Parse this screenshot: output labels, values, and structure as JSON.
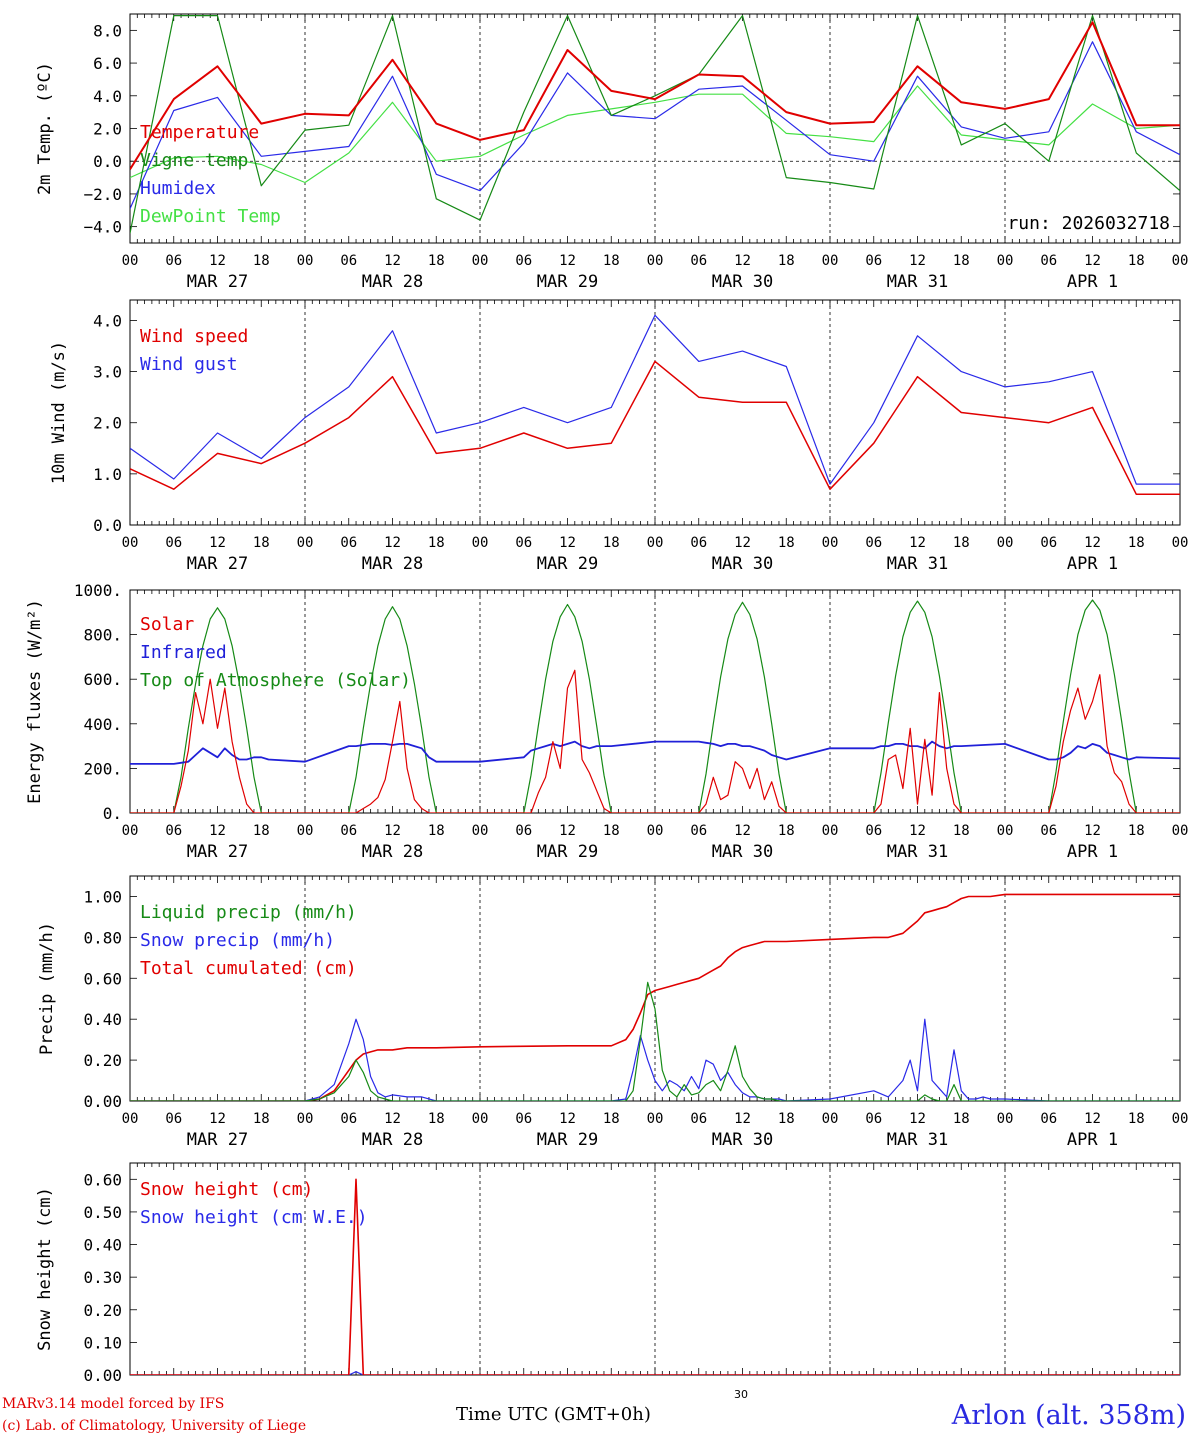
{
  "footer": {
    "model": "MARv3.14 model forced by IFS",
    "copyright": "(c) Lab. of Climatology, University of Liege",
    "time_label": "Time UTC (GMT+0h)",
    "extra_label": "30",
    "station": "Arlon (alt. 358m)"
  },
  "x_axis": {
    "hour_labels": [
      "00",
      "06",
      "12",
      "18",
      "00",
      "06",
      "12",
      "18",
      "00",
      "06",
      "12",
      "18",
      "00",
      "06",
      "12",
      "18",
      "00",
      "06",
      "12",
      "18",
      "00",
      "06",
      "12",
      "18",
      "00"
    ],
    "day_labels": [
      "MAR 27",
      "MAR 28",
      "MAR 29",
      "MAR 30",
      "MAR 31",
      "APR  1"
    ]
  },
  "chart_data": [
    {
      "type": "line",
      "title": "",
      "ylabel": "2m Temp. (ºC)",
      "ylim": [
        -5.0,
        9.0
      ],
      "yticks": [
        "8.0",
        "6.0",
        "4.0",
        "2.0",
        "0.0",
        "−2.0",
        "−4.0"
      ],
      "ytick_values": [
        8,
        6,
        4,
        2,
        0,
        -2,
        -4
      ],
      "zero_line": true,
      "annotation": "run: 2026032718",
      "x_hours": [
        0,
        6,
        12,
        18,
        24,
        30,
        36,
        42,
        48,
        54,
        60,
        66,
        72,
        78,
        84,
        90,
        96,
        102,
        108,
        114,
        120,
        126,
        132,
        138,
        144
      ],
      "series": [
        {
          "name": "Temperature",
          "color": "#e00000",
          "width": 2,
          "values": [
            -0.5,
            3.8,
            5.8,
            2.3,
            2.9,
            2.8,
            6.2,
            2.3,
            1.3,
            1.9,
            6.8,
            4.3,
            3.8,
            5.3,
            5.2,
            3.0,
            2.3,
            2.4,
            5.8,
            3.6,
            3.2,
            3.8,
            8.5,
            2.2,
            2.2
          ]
        },
        {
          "name": "Vigne temp",
          "color": "#168a16",
          "width": 1.2,
          "values": [
            -4.4,
            8.9,
            8.9,
            -1.5,
            1.9,
            2.2,
            8.9,
            -2.3,
            -3.6,
            3.0,
            8.9,
            2.8,
            4.0,
            5.3,
            8.9,
            -1.0,
            -1.3,
            -1.7,
            8.9,
            1.0,
            2.3,
            0.0,
            8.9,
            0.5,
            -1.8
          ]
        },
        {
          "name": "Humidex",
          "color": "#2a2ae8",
          "width": 1.2,
          "values": [
            -2.9,
            3.1,
            3.9,
            0.3,
            0.6,
            0.9,
            5.2,
            -0.8,
            -1.8,
            1.1,
            5.4,
            2.8,
            2.6,
            4.4,
            4.6,
            2.5,
            0.4,
            0.0,
            5.2,
            2.1,
            1.4,
            1.8,
            7.3,
            1.8,
            0.4
          ]
        },
        {
          "name": "DewPoint Temp",
          "color": "#44e044",
          "width": 1.2,
          "values": [
            -1.0,
            0.2,
            0.3,
            -0.2,
            -1.3,
            0.5,
            3.6,
            0.0,
            0.3,
            1.6,
            2.8,
            3.2,
            3.6,
            4.1,
            4.1,
            1.7,
            1.5,
            1.2,
            4.6,
            1.6,
            1.3,
            1.0,
            3.5,
            2.0,
            2.2
          ]
        }
      ]
    },
    {
      "type": "line",
      "title": "",
      "ylabel": "10m Wind (m/s)",
      "ylim": [
        0.0,
        4.4
      ],
      "yticks": [
        "4.0",
        "3.0",
        "2.0",
        "1.0",
        "0.0"
      ],
      "ytick_values": [
        4,
        3,
        2,
        1,
        0
      ],
      "zero_line": false,
      "x_hours": [
        0,
        6,
        12,
        18,
        24,
        30,
        36,
        42,
        48,
        54,
        60,
        66,
        72,
        78,
        84,
        90,
        96,
        102,
        108,
        114,
        120,
        126,
        132,
        138,
        144
      ],
      "series": [
        {
          "name": "Wind speed",
          "color": "#e00000",
          "width": 1.5,
          "values": [
            1.1,
            0.7,
            1.4,
            1.2,
            1.6,
            2.1,
            2.9,
            1.4,
            1.5,
            1.8,
            1.5,
            1.6,
            3.2,
            2.5,
            2.4,
            2.4,
            0.7,
            1.6,
            2.9,
            2.2,
            2.1,
            2.0,
            2.3,
            0.6,
            0.6
          ]
        },
        {
          "name": "Wind gust",
          "color": "#2a2ae8",
          "width": 1.2,
          "values": [
            1.5,
            0.9,
            1.8,
            1.3,
            2.1,
            2.7,
            3.8,
            1.8,
            2.0,
            2.3,
            2.0,
            2.3,
            4.1,
            3.2,
            3.4,
            3.1,
            0.8,
            2.0,
            3.7,
            3.0,
            2.7,
            2.8,
            3.0,
            0.8,
            0.8
          ]
        }
      ]
    },
    {
      "type": "line",
      "title": "",
      "ylabel": "Energy fluxes (W/m²)",
      "ylim": [
        0,
        1000
      ],
      "yticks": [
        "1000.",
        "800.",
        "600.",
        "400.",
        "200.",
        "0."
      ],
      "ytick_values": [
        1000,
        800,
        600,
        400,
        200,
        0
      ],
      "zero_line": false,
      "x_hours": [
        0,
        6,
        7,
        8,
        9,
        10,
        11,
        12,
        13,
        14,
        15,
        16,
        17,
        18,
        19,
        24,
        30,
        31,
        32,
        33,
        34,
        35,
        36,
        37,
        38,
        39,
        40,
        41,
        42,
        48,
        54,
        55,
        56,
        57,
        58,
        59,
        60,
        61,
        62,
        63,
        64,
        65,
        66,
        72,
        78,
        79,
        80,
        81,
        82,
        83,
        84,
        85,
        86,
        87,
        88,
        89,
        90,
        96,
        102,
        103,
        104,
        105,
        106,
        107,
        108,
        109,
        110,
        111,
        112,
        113,
        114,
        120,
        126,
        127,
        128,
        129,
        130,
        131,
        132,
        133,
        134,
        135,
        136,
        137,
        138,
        144
      ],
      "series": [
        {
          "name": "Solar",
          "color": "#e00000",
          "width": 1.2,
          "values": [
            0,
            0,
            120,
            280,
            540,
            400,
            600,
            380,
            560,
            320,
            160,
            40,
            0,
            0,
            0,
            0,
            0,
            0,
            20,
            40,
            70,
            150,
            320,
            500,
            200,
            60,
            20,
            0,
            0,
            0,
            0,
            0,
            90,
            160,
            320,
            200,
            560,
            640,
            240,
            180,
            100,
            20,
            0,
            0,
            0,
            40,
            160,
            60,
            80,
            230,
            200,
            110,
            200,
            60,
            140,
            30,
            0,
            0,
            0,
            40,
            240,
            260,
            110,
            380,
            40,
            330,
            80,
            540,
            200,
            40,
            0,
            0,
            0,
            120,
            320,
            460,
            560,
            420,
            500,
            620,
            300,
            180,
            140,
            40,
            0,
            0
          ]
        },
        {
          "name": "Infrared",
          "color": "#2020d8",
          "width": 1.8,
          "values": [
            220,
            220,
            225,
            230,
            260,
            290,
            270,
            250,
            290,
            260,
            240,
            240,
            250,
            250,
            240,
            230,
            300,
            300,
            305,
            310,
            310,
            310,
            305,
            310,
            310,
            300,
            290,
            250,
            230,
            230,
            250,
            280,
            290,
            300,
            310,
            300,
            310,
            320,
            300,
            290,
            300,
            300,
            300,
            320,
            320,
            315,
            310,
            300,
            310,
            310,
            300,
            300,
            290,
            280,
            260,
            250,
            240,
            290,
            290,
            300,
            300,
            310,
            310,
            300,
            300,
            290,
            320,
            300,
            290,
            300,
            300,
            310,
            240,
            240,
            250,
            270,
            300,
            290,
            310,
            300,
            270,
            260,
            250,
            240,
            250,
            245
          ]
        },
        {
          "name": "Top of Atmosphere (Solar)",
          "color": "#168a16",
          "width": 1.2,
          "values": [
            0,
            0,
            160,
            380,
            580,
            750,
            870,
            920,
            870,
            750,
            580,
            380,
            160,
            0,
            0,
            0,
            0,
            160,
            380,
            580,
            750,
            870,
            925,
            870,
            750,
            580,
            380,
            160,
            0,
            0,
            0,
            170,
            390,
            600,
            770,
            880,
            935,
            880,
            770,
            600,
            390,
            170,
            0,
            0,
            0,
            175,
            400,
            610,
            780,
            890,
            945,
            890,
            780,
            610,
            400,
            175,
            0,
            0,
            0,
            180,
            405,
            615,
            790,
            900,
            950,
            900,
            790,
            615,
            405,
            180,
            0,
            0,
            0,
            185,
            410,
            620,
            800,
            910,
            955,
            910,
            800,
            620,
            410,
            185,
            0,
            0
          ]
        }
      ]
    },
    {
      "type": "line",
      "title": "",
      "ylabel": "Precip (mm/h)",
      "ylim": [
        0.0,
        1.1
      ],
      "yticks": [
        "1.00",
        "0.80",
        "0.60",
        "0.40",
        "0.20",
        "0.00"
      ],
      "ytick_values": [
        1.0,
        0.8,
        0.6,
        0.4,
        0.2,
        0.0
      ],
      "zero_line": false,
      "x_hours": [
        0,
        24,
        26,
        28,
        30,
        31,
        32,
        33,
        34,
        35,
        36,
        38,
        40,
        42,
        48,
        60,
        66,
        68,
        69,
        70,
        71,
        72,
        73,
        74,
        75,
        76,
        77,
        78,
        79,
        80,
        81,
        82,
        83,
        84,
        85,
        86,
        87,
        88,
        89,
        90,
        96,
        102,
        104,
        106,
        107,
        108,
        109,
        110,
        111,
        112,
        113,
        114,
        115,
        116,
        117,
        118,
        120,
        126,
        132,
        138,
        144
      ],
      "series": [
        {
          "name": "Liquid precip (mm/h)",
          "color": "#168a16",
          "width": 1.2,
          "values": [
            0,
            0,
            0.01,
            0.04,
            0.12,
            0.2,
            0.14,
            0.05,
            0.02,
            0.01,
            0,
            0,
            0,
            0,
            0,
            0,
            0,
            0,
            0.05,
            0.3,
            0.58,
            0.45,
            0.15,
            0.05,
            0.02,
            0.08,
            0.03,
            0.04,
            0.08,
            0.1,
            0.05,
            0.15,
            0.27,
            0.12,
            0.06,
            0.02,
            0.01,
            0.01,
            0,
            0,
            0,
            0,
            0,
            0,
            0,
            0,
            0.03,
            0.01,
            0,
            0,
            0.08,
            0,
            0,
            0,
            0,
            0,
            0,
            0,
            0,
            0,
            0
          ]
        },
        {
          "name": "Snow precip (mm/h)",
          "color": "#2a2ae8",
          "width": 1.2,
          "values": [
            0,
            0,
            0.02,
            0.08,
            0.28,
            0.4,
            0.3,
            0.12,
            0.04,
            0.02,
            0.03,
            0.02,
            0.02,
            0,
            0,
            0,
            0,
            0.01,
            0.15,
            0.32,
            0.2,
            0.1,
            0.05,
            0.1,
            0.08,
            0.05,
            0.12,
            0.06,
            0.2,
            0.18,
            0.1,
            0.14,
            0.08,
            0.04,
            0.02,
            0.02,
            0.01,
            0.01,
            0.01,
            0,
            0.01,
            0.05,
            0.02,
            0.1,
            0.2,
            0.05,
            0.4,
            0.1,
            0.06,
            0.02,
            0.25,
            0.05,
            0.01,
            0.01,
            0.02,
            0.01,
            0.01,
            0,
            0,
            0,
            0
          ]
        },
        {
          "name": "Total cumulated (cm)",
          "color": "#e00000",
          "width": 1.6,
          "values": [
            0,
            0,
            0.01,
            0.05,
            0.15,
            0.2,
            0.23,
            0.24,
            0.25,
            0.25,
            0.25,
            0.26,
            0.26,
            0.26,
            0.265,
            0.27,
            0.27,
            0.3,
            0.35,
            0.43,
            0.52,
            0.54,
            0.55,
            0.56,
            0.57,
            0.58,
            0.59,
            0.6,
            0.62,
            0.64,
            0.66,
            0.7,
            0.73,
            0.75,
            0.76,
            0.77,
            0.78,
            0.78,
            0.78,
            0.78,
            0.79,
            0.8,
            0.8,
            0.82,
            0.85,
            0.88,
            0.92,
            0.93,
            0.94,
            0.95,
            0.97,
            0.99,
            1.0,
            1.0,
            1.0,
            1.0,
            1.01,
            1.01,
            1.01,
            1.01,
            1.01
          ]
        }
      ]
    },
    {
      "type": "line",
      "title": "",
      "ylabel": "Snow height (cm)",
      "ylim": [
        0.0,
        0.65
      ],
      "yticks": [
        "0.60",
        "0.50",
        "0.40",
        "0.30",
        "0.20",
        "0.10",
        "0.00"
      ],
      "ytick_values": [
        0.6,
        0.5,
        0.4,
        0.3,
        0.2,
        0.1,
        0.0
      ],
      "zero_line": false,
      "x_hours": [
        0,
        30,
        31,
        32,
        144
      ],
      "series": [
        {
          "name": "Snow height (cm)",
          "color": "#e00000",
          "width": 1.6,
          "values": [
            0,
            0,
            0.6,
            0,
            0
          ]
        },
        {
          "name": "Snow height (cm W.E.)",
          "color": "#2a2ae8",
          "width": 1.2,
          "values": [
            0,
            0,
            0.01,
            0,
            0
          ]
        }
      ]
    }
  ]
}
